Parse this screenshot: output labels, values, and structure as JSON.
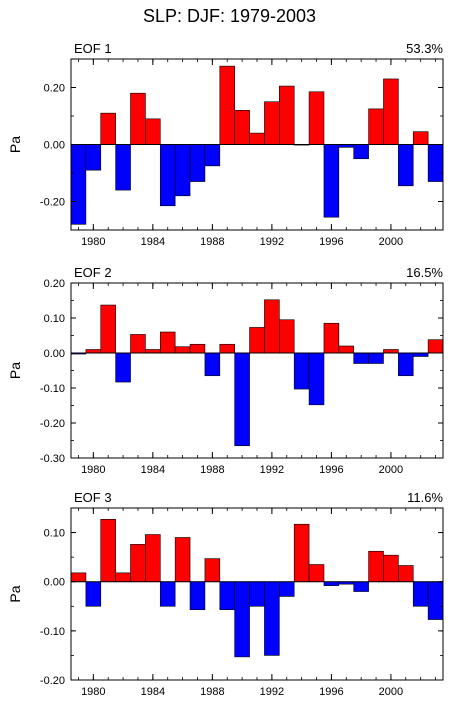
{
  "title": "SLP: DJF: 1979-2003",
  "colors": {
    "positive": "#ff0000",
    "negative": "#0000ff",
    "axis": "#000000"
  },
  "chart_data": [
    {
      "type": "bar",
      "panel_label": "EOF 1",
      "variance": "53.3%",
      "ylabel": "Pa",
      "ylim": [
        -0.3,
        0.3
      ],
      "yticks": [
        {
          "v": 0.2,
          "label": "0.20"
        },
        {
          "v": 0.0,
          "label": "0.00"
        },
        {
          "v": -0.2,
          "label": "-0.20"
        }
      ],
      "xlim": [
        1978.5,
        2003.5
      ],
      "xticks": [
        1980,
        1984,
        1988,
        1992,
        1996,
        2000
      ],
      "grid": false,
      "x": [
        1979,
        1980,
        1981,
        1982,
        1983,
        1984,
        1985,
        1986,
        1987,
        1988,
        1989,
        1990,
        1991,
        1992,
        1993,
        1994,
        1995,
        1996,
        1997,
        1998,
        1999,
        2000,
        2001,
        2002,
        2003
      ],
      "values": [
        -0.28,
        -0.09,
        0.11,
        -0.16,
        0.18,
        0.09,
        -0.215,
        -0.18,
        -0.13,
        -0.075,
        0.275,
        0.12,
        0.04,
        0.15,
        0.205,
        0.0,
        0.185,
        -0.255,
        -0.01,
        -0.05,
        0.125,
        0.23,
        -0.145,
        0.045,
        -0.13
      ]
    },
    {
      "type": "bar",
      "panel_label": "EOF 2",
      "variance": "16.5%",
      "ylabel": "Pa",
      "ylim": [
        -0.3,
        0.2
      ],
      "yticks": [
        {
          "v": 0.2,
          "label": "0.20"
        },
        {
          "v": 0.1,
          "label": "0.10"
        },
        {
          "v": 0.0,
          "label": "0.00"
        },
        {
          "v": -0.1,
          "label": "-0.10"
        },
        {
          "v": -0.2,
          "label": "-0.20"
        },
        {
          "v": -0.3,
          "label": "-0.30"
        }
      ],
      "xlim": [
        1978.5,
        2003.5
      ],
      "xticks": [
        1980,
        1984,
        1988,
        1992,
        1996,
        2000
      ],
      "grid": false,
      "x": [
        1979,
        1980,
        1981,
        1982,
        1983,
        1984,
        1985,
        1986,
        1987,
        1988,
        1989,
        1990,
        1991,
        1992,
        1993,
        1994,
        1995,
        1996,
        1997,
        1998,
        1999,
        2000,
        2001,
        2002,
        2003
      ],
      "values": [
        -0.003,
        0.01,
        0.137,
        -0.083,
        0.053,
        0.01,
        0.06,
        0.018,
        0.025,
        -0.065,
        0.025,
        -0.265,
        0.073,
        0.152,
        0.095,
        -0.103,
        -0.148,
        0.085,
        0.02,
        -0.03,
        -0.03,
        0.01,
        -0.065,
        -0.01,
        0.038
      ]
    },
    {
      "type": "bar",
      "panel_label": "EOF 3",
      "variance": "11.6%",
      "ylabel": "Pa",
      "ylim": [
        -0.2,
        0.15
      ],
      "yticks": [
        {
          "v": 0.1,
          "label": "0.10"
        },
        {
          "v": 0.0,
          "label": "0.00"
        },
        {
          "v": -0.1,
          "label": "-0.10"
        },
        {
          "v": -0.2,
          "label": "-0.20"
        }
      ],
      "xlim": [
        1978.5,
        2003.5
      ],
      "xticks": [
        1980,
        1984,
        1988,
        1992,
        1996,
        2000
      ],
      "grid": false,
      "x": [
        1979,
        1980,
        1981,
        1982,
        1983,
        1984,
        1985,
        1986,
        1987,
        1988,
        1989,
        1990,
        1991,
        1992,
        1993,
        1994,
        1995,
        1996,
        1997,
        1998,
        1999,
        2000,
        2001,
        2002,
        2003
      ],
      "values": [
        0.018,
        -0.05,
        0.127,
        0.018,
        0.076,
        0.096,
        -0.05,
        0.09,
        -0.057,
        0.047,
        -0.057,
        -0.153,
        -0.05,
        -0.15,
        -0.03,
        0.117,
        0.035,
        -0.008,
        -0.005,
        -0.02,
        0.062,
        0.054,
        0.033,
        -0.05,
        -0.077
      ]
    }
  ]
}
